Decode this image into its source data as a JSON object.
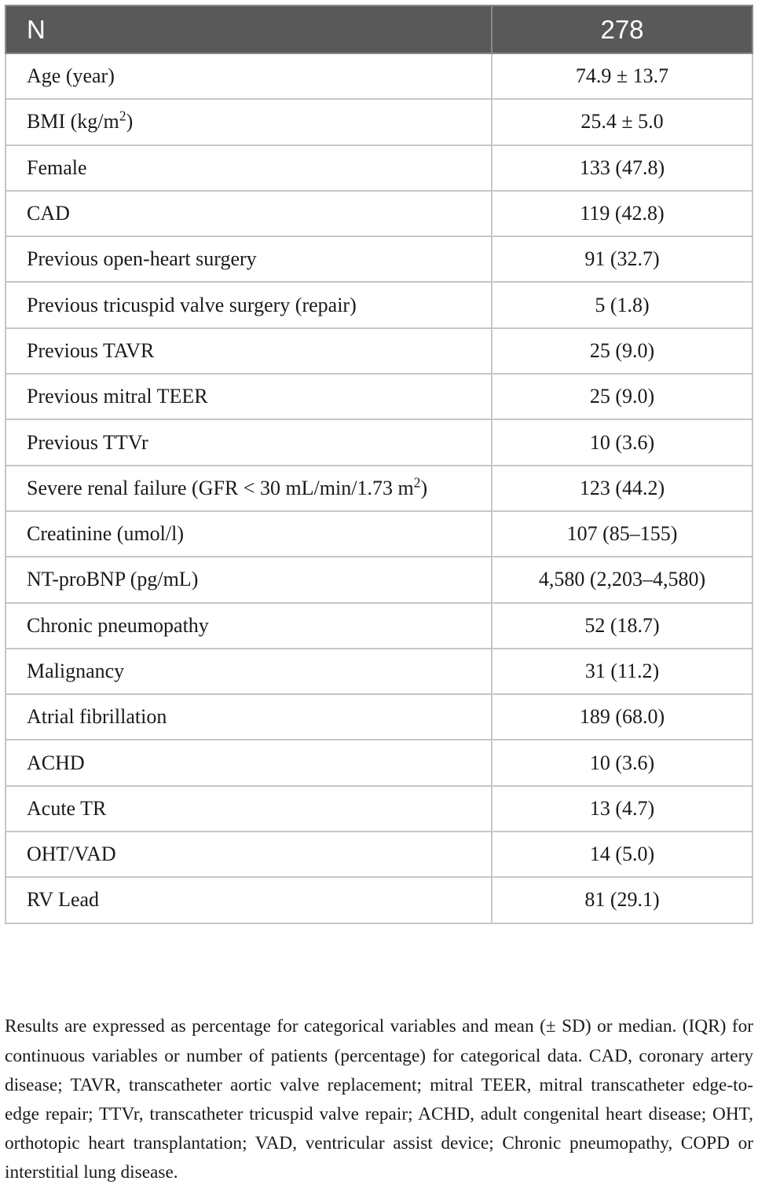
{
  "header": {
    "label": "N",
    "value": "278"
  },
  "rows": [
    {
      "label": "Age (year)",
      "value": "74.9 ± 13.7"
    },
    {
      "label_pre": "BMI (kg/m",
      "label_sup": "2",
      "label_post": ")",
      "value": "25.4 ± 5.0"
    },
    {
      "label": "Female",
      "value": "133 (47.8)"
    },
    {
      "label": "CAD",
      "value": "119 (42.8)"
    },
    {
      "label": "Previous open-heart surgery",
      "value": "91 (32.7)"
    },
    {
      "label": "Previous tricuspid valve surgery (repair)",
      "value": "5 (1.8)"
    },
    {
      "label": "Previous TAVR",
      "value": "25 (9.0)"
    },
    {
      "label": "Previous mitral TEER",
      "value": "25 (9.0)"
    },
    {
      "label": "Previous TTVr",
      "value": "10 (3.6)"
    },
    {
      "label_pre": "Severe renal failure (GFR < 30 mL/min/1.73 m",
      "label_sup": "2",
      "label_post": ")",
      "value": "123 (44.2)"
    },
    {
      "label": "Creatinine (umol/l)",
      "value": "107 (85–155)"
    },
    {
      "label": "NT-proBNP (pg/mL)",
      "value": "4,580 (2,203–4,580)"
    },
    {
      "label": "Chronic pneumopathy",
      "value": "52 (18.7)"
    },
    {
      "label": "Malignancy",
      "value": "31 (11.2)"
    },
    {
      "label": "Atrial fibrillation",
      "value": "189 (68.0)"
    },
    {
      "label": "ACHD",
      "value": "10 (3.6)"
    },
    {
      "label": "Acute TR",
      "value": "13 (4.7)"
    },
    {
      "label": "OHT/VAD",
      "value": "14 (5.0)"
    },
    {
      "label": "RV Lead",
      "value": "81 (29.1)"
    }
  ],
  "footnote": "Results are expressed as percentage for categorical variables and mean (± SD) or median. (IQR) for continuous variables or number of patients (percentage) for categorical data. CAD, coronary artery disease; TAVR, transcatheter aortic valve replacement; mitral TEER, mitral transcatheter edge-to-edge repair; TTVr, transcatheter tricuspid valve repair; ACHD, adult congenital heart disease; OHT, orthotopic heart transplantation; VAD, ventricular assist device; Chronic pneumopathy, COPD or interstitial lung disease.",
  "colors": {
    "header_bg": "#595959",
    "header_text": "#ffffff",
    "grid": "#c6c6c6",
    "text": "#1a1a1a"
  }
}
